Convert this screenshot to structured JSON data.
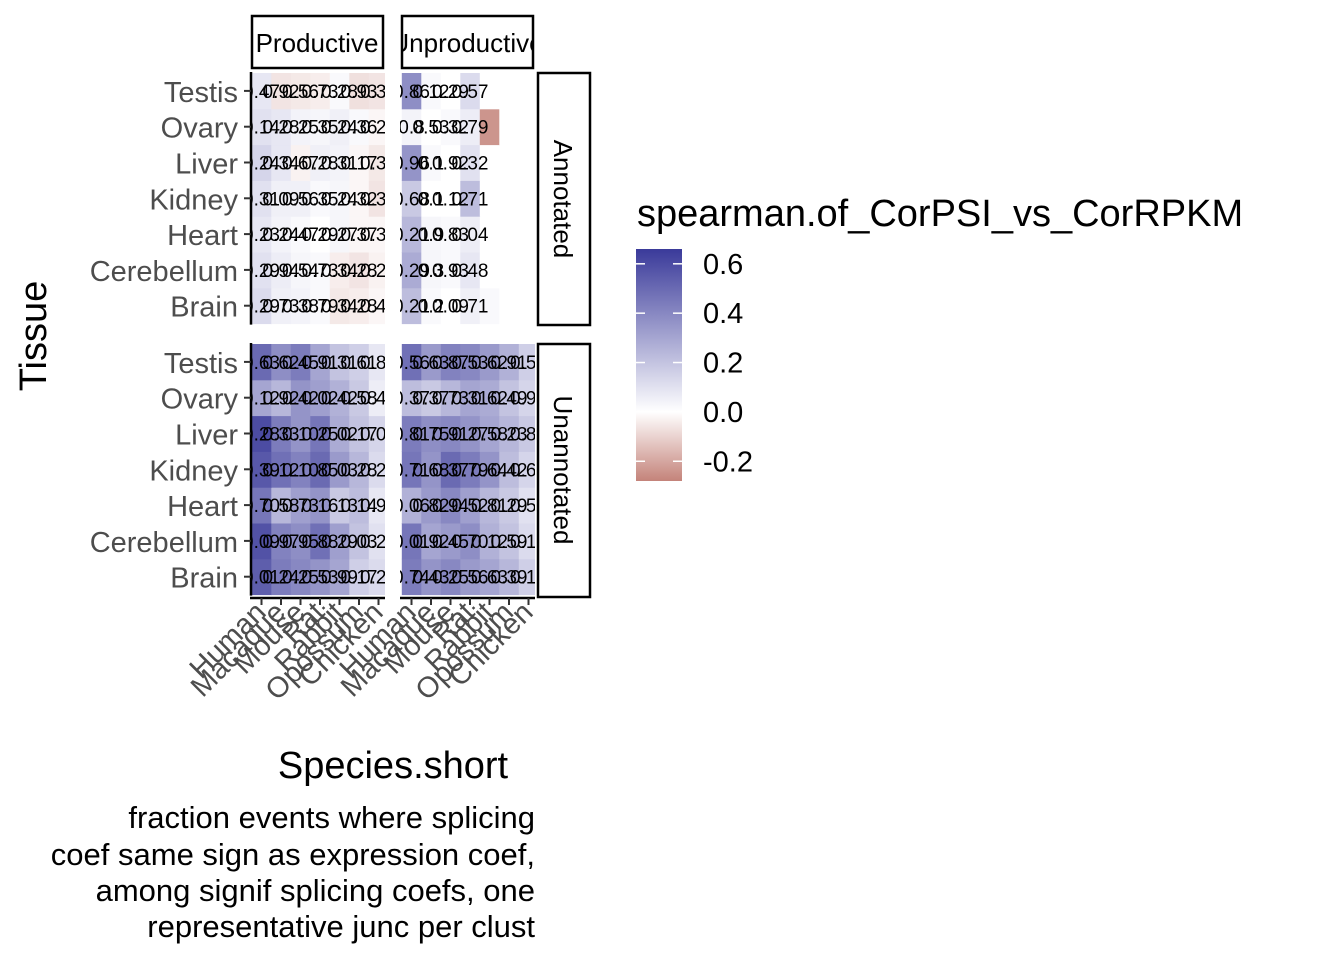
{
  "chart_data": {
    "type": "heatmap",
    "xlabel": "Species.short",
    "ylabel": "Tissue",
    "caption_lines": [
      "fraction events where splicing",
      "coef same sign as expression coef,",
      "among signif splicing coefs, one",
      "representative junc per clust"
    ],
    "column_facets": [
      "Productive",
      "Unproductive"
    ],
    "row_facets": [
      "Annotated",
      "Unannotated"
    ],
    "x_categories": [
      "Human",
      "Macaque",
      "Mouse",
      "Rat",
      "Rabbit",
      "Opossum",
      "Chicken"
    ],
    "y_categories": [
      "Brain",
      "Cerebellum",
      "Heart",
      "Kidney",
      "Liver",
      "Ovary",
      "Testis"
    ],
    "legend": {
      "title": "spearman.of_CorPSI_vs_CorRPKM",
      "ticks": [
        0.6,
        0.4,
        0.2,
        0.0,
        -0.2
      ],
      "tick_labels": [
        "0.6",
        "0.4",
        "0.2",
        "0.0",
        "-0.2"
      ],
      "limits": [
        -0.28,
        0.66
      ],
      "low_color": "#c4837a",
      "mid_color": "#ffffff",
      "high_color": "#3a3a9a"
    },
    "panels": [
      {
        "column": "Productive",
        "row": "Annotated",
        "values": [
          [
            0.12,
            0.05,
            0.04,
            0.02,
            -0.05,
            -0.04,
            -0.02
          ],
          [
            0.1,
            0.06,
            0.03,
            0.02,
            -0.04,
            -0.06,
            -0.03
          ],
          [
            0.08,
            0.04,
            0.02,
            0.0,
            0.03,
            -0.02,
            -0.02
          ],
          [
            0.1,
            0.05,
            0.05,
            0.02,
            0.03,
            -0.02,
            -0.06
          ],
          [
            0.14,
            0.08,
            -0.03,
            0.05,
            0.04,
            -0.02,
            -0.05
          ],
          [
            0.1,
            0.08,
            0.04,
            0.03,
            0.05,
            0.02,
            -0.02
          ],
          [
            0.08,
            -0.06,
            -0.05,
            -0.04,
            0.02,
            -0.07,
            -0.06
          ]
        ],
        "labels": [
          [
            "0.29",
            "0.73",
            "0.38",
            "0.79",
            "0.34",
            "0.28",
            "0.41"
          ],
          [
            "0.29",
            "0.94",
            "0.54",
            "0.73",
            "0.34",
            "0.28",
            "0.24"
          ],
          [
            "0.23",
            "0.24",
            "0.47",
            "0.29",
            "0.27",
            "0.37",
            "0.35"
          ],
          [
            "0.31",
            "0.09",
            "0.56",
            "0.35",
            "0.24",
            "0.32",
            "0.34"
          ],
          [
            "0.24",
            "0.34",
            "0.67",
            "0.28",
            "0.31",
            "0.17",
            "0.36"
          ],
          [
            "0.14",
            "0.28",
            "0.25",
            "0.35",
            "0.24",
            "0.36",
            "0.21"
          ],
          [
            "0.47",
            "0.92",
            "0.56",
            "0.73",
            "0.28",
            "0.93",
            "0.38"
          ]
        ]
      },
      {
        "column": "Unproductive",
        "row": "Annotated",
        "values": [
          [
            0.22,
            0.02,
            0.0,
            0.05,
            0.02,
            0.0,
            0.0
          ],
          [
            0.28,
            0.03,
            0.02,
            0.08,
            0.0,
            0.0,
            0.0
          ],
          [
            0.24,
            0.03,
            0.02,
            0.06,
            0.0,
            0.0,
            0.0
          ],
          [
            0.18,
            0.0,
            0.0,
            0.22,
            0.0,
            0.0,
            0.0
          ],
          [
            0.36,
            0.02,
            0.0,
            0.1,
            0.0,
            0.0,
            0.0
          ],
          [
            0.04,
            0.0,
            0.02,
            0.06,
            -0.24,
            0.0,
            0.0
          ],
          [
            0.38,
            0.02,
            0.0,
            0.12,
            0.0,
            0.0,
            0.0
          ]
        ],
        "labels": [
          [
            "0.21",
            "0.2",
            "0.09",
            "0.71",
            "",
            "",
            ""
          ],
          [
            "0.29",
            "0.3",
            "0.93",
            "0.48",
            "",
            "",
            ""
          ],
          [
            "0.21",
            "0.9",
            "0.83",
            "0.04",
            "",
            "",
            ""
          ],
          [
            "0.68",
            "0.1",
            "0.12",
            "0.71",
            "",
            "",
            ""
          ],
          [
            "0.96",
            "0.1",
            "0.92",
            "0.32",
            "",
            "",
            ""
          ],
          [
            "0.8",
            "0.53",
            "0.32",
            "0.79",
            "",
            "",
            ""
          ],
          [
            "0.86",
            "0.12",
            "0.29",
            "0.57",
            "",
            "",
            ""
          ]
        ]
      },
      {
        "column": "Productive",
        "row": "Unannotated",
        "values": [
          [
            0.54,
            0.44,
            0.4,
            0.36,
            0.3,
            0.16,
            0.12
          ],
          [
            0.58,
            0.42,
            0.38,
            0.48,
            0.32,
            0.2,
            0.1
          ],
          [
            0.46,
            0.24,
            0.32,
            0.36,
            0.18,
            0.22,
            0.08
          ],
          [
            0.56,
            0.48,
            0.42,
            0.5,
            0.34,
            0.24,
            0.12
          ],
          [
            0.6,
            0.44,
            0.36,
            0.46,
            0.28,
            0.2,
            0.14
          ],
          [
            0.3,
            0.24,
            0.36,
            0.32,
            0.26,
            0.18,
            0.06
          ],
          [
            0.5,
            0.38,
            0.44,
            0.3,
            0.2,
            0.16,
            0.08
          ]
        ],
        "labels": [
          [
            "0.01",
            "0.24",
            "0.25",
            "0.53",
            "0.99",
            "0.17",
            "0.24"
          ],
          [
            "0.09",
            "0.97",
            "0.95",
            "0.88",
            "0.29",
            "0.03",
            "0.28"
          ],
          [
            "0.70",
            "0.58",
            "0.73",
            "0.16",
            "0.13",
            "0.14",
            "0.94"
          ],
          [
            "0.39",
            "0.12",
            "0.10",
            "0.85",
            "0.03",
            "0.28",
            "0.28"
          ],
          [
            "0.28",
            "0.33",
            "0.10",
            "0.25",
            "0.02",
            "0.17",
            "0.07"
          ],
          [
            "0.12",
            "0.92",
            "0.42",
            "0.02",
            "0.42",
            "0.58",
            "0.40"
          ],
          [
            "0.63",
            "0.62",
            "0.45",
            "0.91",
            "0.31",
            "0.61",
            "0.89"
          ]
        ]
      },
      {
        "column": "Unproductive",
        "row": "Unannotated",
        "values": [
          [
            0.44,
            0.36,
            0.4,
            0.34,
            0.3,
            0.24,
            0.16
          ],
          [
            0.46,
            0.3,
            0.34,
            0.38,
            0.26,
            0.2,
            0.12
          ],
          [
            0.26,
            0.34,
            0.4,
            0.32,
            0.24,
            0.18,
            0.1
          ],
          [
            0.46,
            0.36,
            0.5,
            0.44,
            0.36,
            0.22,
            0.14
          ],
          [
            0.44,
            0.38,
            0.4,
            0.36,
            0.3,
            0.24,
            0.18
          ],
          [
            0.22,
            0.18,
            0.24,
            0.3,
            0.28,
            0.2,
            0.14
          ],
          [
            0.48,
            0.34,
            0.42,
            0.4,
            0.34,
            0.26,
            0.16
          ]
        ],
        "labels": [
          [
            "0.74",
            "0.43",
            "0.25",
            "0.56",
            "0.63",
            "0.39",
            "0.15"
          ],
          [
            "0.01",
            "0.92",
            "0.45",
            "0.70",
            "0.12",
            "0.59",
            "0.10"
          ],
          [
            "0.06",
            "0.82",
            "0.94",
            "0.52",
            "0.81",
            "0.29",
            "0.57"
          ],
          [
            "0.71",
            "0.68",
            "0.37",
            "0.79",
            "0.64",
            "0.42",
            "0.63"
          ],
          [
            "0.81",
            "0.75",
            "0.91",
            "0.27",
            "0.58",
            "0.23",
            "0.84"
          ],
          [
            "0.37",
            "0.37",
            "0.73",
            "0.31",
            "0.62",
            "0.49",
            "0.91"
          ],
          [
            "0.56",
            "0.63",
            "0.87",
            "0.53",
            "0.62",
            "0.91",
            "0.57"
          ]
        ]
      }
    ]
  }
}
